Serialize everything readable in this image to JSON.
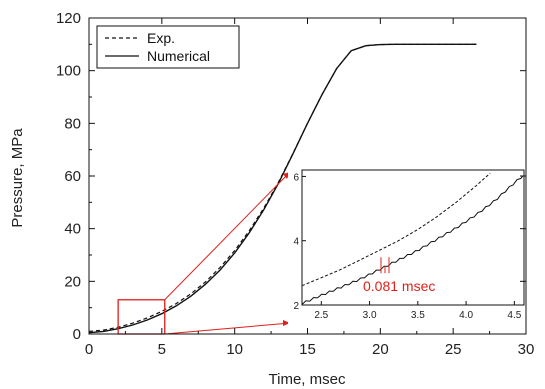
{
  "chart_data": {
    "type": "line",
    "xlabel": "Time, msec",
    "ylabel": "Pressure, MPa",
    "xlim": [
      0,
      30
    ],
    "ylim": [
      0,
      120
    ],
    "xticks": [
      "0",
      "5",
      "10",
      "15",
      "20",
      "25",
      "30"
    ],
    "yticks": [
      "0",
      "20",
      "40",
      "60",
      "80",
      "100",
      "120"
    ],
    "legend": {
      "placement": "top-left",
      "entries": [
        "Exp.",
        "Numerical"
      ]
    },
    "series": [
      {
        "name": "Exp.",
        "style": "dashed",
        "x": [
          0,
          1,
          2,
          3,
          4,
          5,
          6,
          7,
          8,
          9,
          10,
          11,
          12,
          13,
          14,
          15,
          16,
          17,
          18,
          19,
          20,
          21,
          22,
          23,
          24,
          25,
          26.6
        ],
        "y": [
          1,
          1.5,
          2.6,
          4.1,
          6.1,
          8.6,
          11.6,
          15.3,
          19.8,
          25.3,
          31.7,
          39.2,
          47.8,
          57.6,
          68.5,
          80.0,
          91.0,
          100.8,
          107.6,
          109.5,
          109.9,
          110,
          110,
          110,
          110,
          110,
          110
        ]
      },
      {
        "name": "Numerical",
        "style": "solid",
        "x": [
          0,
          1,
          2,
          3,
          4,
          5,
          6,
          7,
          8,
          9,
          10,
          11,
          12,
          13,
          14,
          15,
          16,
          17,
          18,
          19,
          20,
          21,
          22,
          23,
          24,
          25,
          26.6
        ],
        "y": [
          0.5,
          1.0,
          2.0,
          3.4,
          5.3,
          7.7,
          10.7,
          14.4,
          18.9,
          24.3,
          30.8,
          38.4,
          47.2,
          57.2,
          68.4,
          80.0,
          91.0,
          100.8,
          107.6,
          109.5,
          109.9,
          110,
          110,
          110,
          110,
          110,
          110
        ]
      }
    ],
    "zoom_box": {
      "x": [
        2.0,
        5.2
      ],
      "y": [
        0,
        13
      ]
    },
    "inset": {
      "xlim": [
        2.3,
        4.6
      ],
      "ylim": [
        2,
        6.2
      ],
      "xticks": [
        "2.5",
        "3.0",
        "3.5",
        "4.0",
        "4.5"
      ],
      "yticks": [
        "2",
        "4",
        "6"
      ],
      "series": [
        {
          "name": "Exp.",
          "style": "dashed",
          "x": [
            2.3,
            2.5,
            2.7,
            2.9,
            3.1,
            3.3,
            3.5,
            3.7,
            3.9,
            4.1,
            4.25
          ],
          "y": [
            2.6,
            2.85,
            3.1,
            3.4,
            3.7,
            4.0,
            4.35,
            4.75,
            5.2,
            5.7,
            6.1
          ]
        },
        {
          "name": "Numerical",
          "style": "solid",
          "sawtooth_period": 0.081,
          "x": [
            2.3,
            2.5,
            2.7,
            2.9,
            3.1,
            3.3,
            3.5,
            3.7,
            3.9,
            4.1,
            4.3,
            4.5,
            4.6
          ],
          "y": [
            2.05,
            2.3,
            2.55,
            2.8,
            3.1,
            3.4,
            3.7,
            4.05,
            4.4,
            4.8,
            5.25,
            5.8,
            6.05
          ]
        }
      ],
      "annotation": {
        "text": "0.081 msec",
        "x": 3.16,
        "y": 3.3,
        "color": "#e0201b"
      }
    },
    "colors": {
      "series": "#111111",
      "highlight": "#e0201b"
    }
  }
}
